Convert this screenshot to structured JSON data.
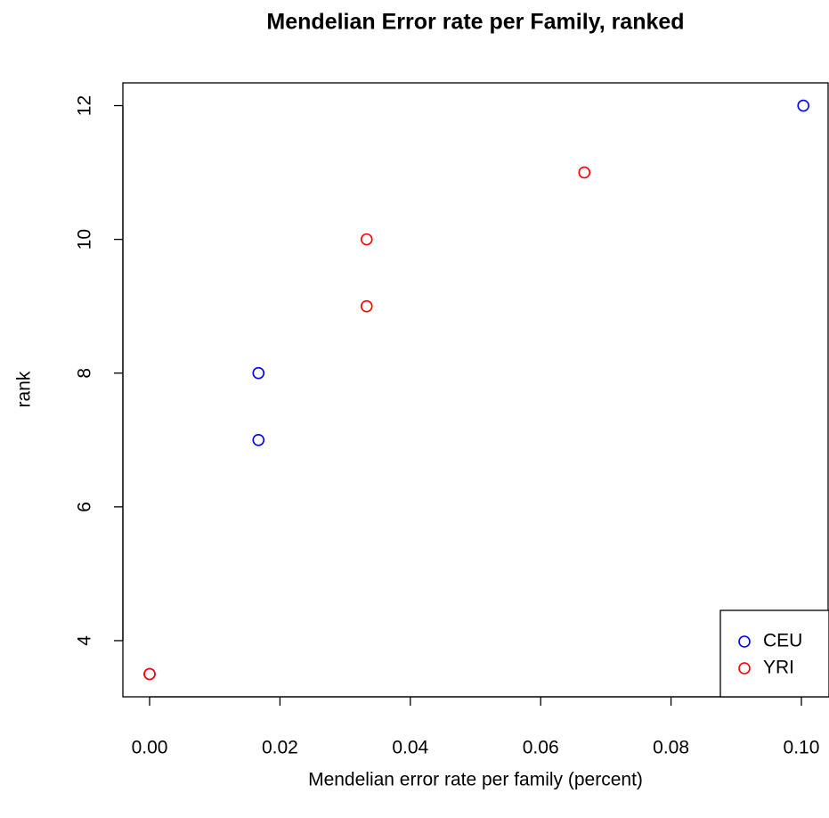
{
  "chart_data": {
    "type": "scatter",
    "title": "Mendelian Error rate per Family, ranked",
    "x_label": "Mendelian error rate per family (percent)",
    "y_label": "rank",
    "series": [
      {
        "name": "CEU",
        "color": "#0000ff",
        "x": [
          0,
          0.0167,
          0.0167,
          0.1003
        ],
        "values": [
          3.5,
          7,
          8,
          12
        ]
      },
      {
        "name": "YRI",
        "color": "#ff0000",
        "x": [
          0,
          0.0333,
          0.0333,
          0.0667
        ],
        "values": [
          3.5,
          9,
          10,
          11
        ]
      }
    ],
    "xlim": [
      -0.0041,
      0.1041
    ],
    "ylim": [
      3.16,
      12.34
    ],
    "xticks": [
      {
        "value": 0,
        "label": "0.00"
      },
      {
        "value": 0.02,
        "label": "0.02"
      },
      {
        "value": 0.04,
        "label": "0.04"
      },
      {
        "value": 0.06,
        "label": "0.06"
      },
      {
        "value": 0.08,
        "label": "0.08"
      },
      {
        "value": 0.1,
        "label": "0.10"
      }
    ],
    "yticks": [
      4,
      6,
      8,
      10,
      12
    ],
    "legend": "bottom-right"
  }
}
